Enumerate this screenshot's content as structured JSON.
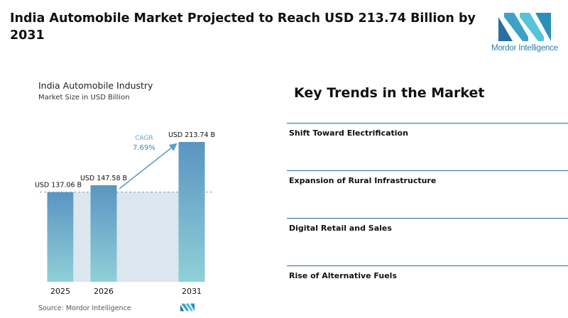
{
  "header": {
    "title": "India Automobile Market Projected to Reach USD 213.74 Billion by 2031",
    "logo_text": "Mordor Intelligence"
  },
  "colors": {
    "bar_top": "#5a95c2",
    "bar_bottom": "#8fd0d8",
    "band": "#dce6ee",
    "accent": "#5a9fc8",
    "divider": "#2a6d9a"
  },
  "chart_data": {
    "type": "bar",
    "title": "India Automobile Industry",
    "subtitle": "Market Size in USD Billion",
    "categories": [
      "2025",
      "2026",
      "2031"
    ],
    "values": [
      137.06,
      147.58,
      213.74
    ],
    "data_labels": [
      "USD 137.06 B",
      "USD 147.58 B",
      "USD 213.74 B"
    ],
    "cagr_label": "CAGR",
    "cagr_value": "7.69%",
    "ylim": [
      0,
      213.74
    ],
    "source": "Source: Mordor Intelligence"
  },
  "trends": {
    "title": "Key Trends in the Market",
    "items": [
      "Shift Toward Electrification",
      "Expansion of Rural Infrastructure",
      "Digital Retail and Sales",
      "Rise of Alternative Fuels"
    ]
  }
}
